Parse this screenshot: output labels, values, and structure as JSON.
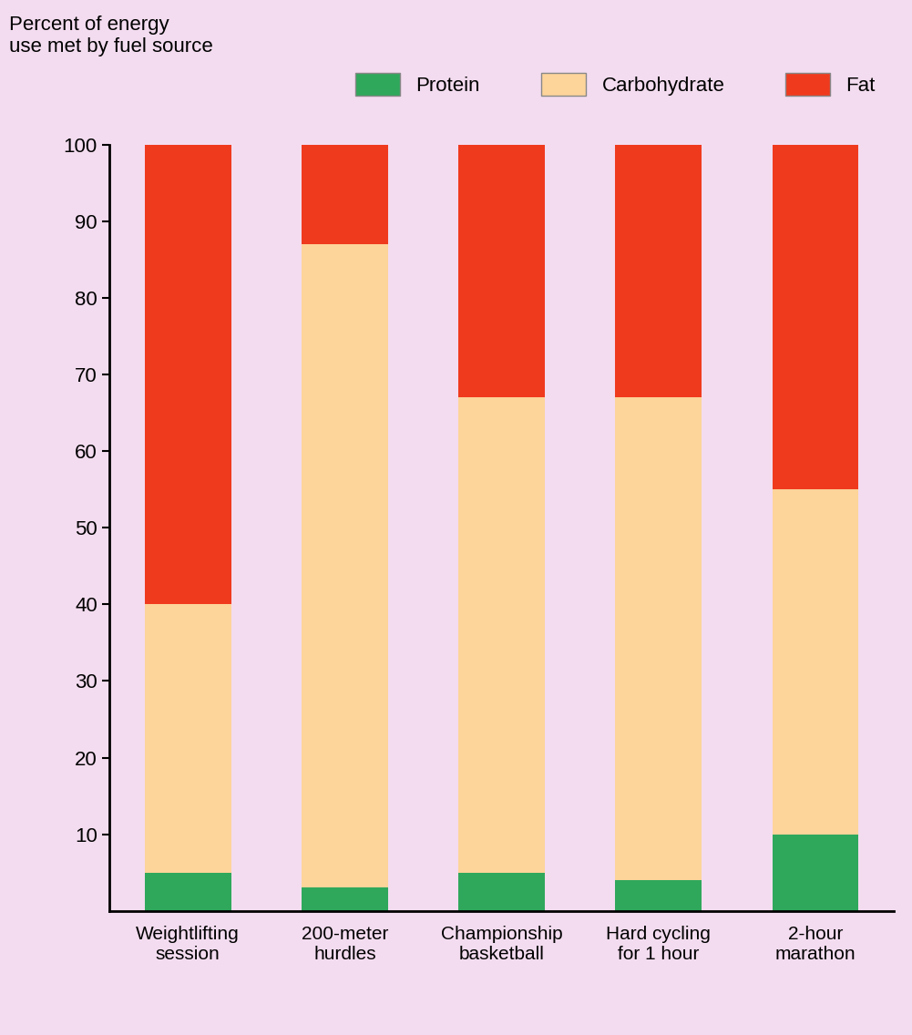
{
  "chart_data": {
    "type": "bar",
    "stacked": true,
    "y_label": "Percent of energy\nuse met by fuel source",
    "categories": [
      "Weightlifting\nsession",
      "200-meter\nhurdles",
      "Championship\nbasketball",
      "Hard cycling\nfor 1 hour",
      "2-hour\nmarathon"
    ],
    "series": [
      {
        "name": "Protein",
        "color": "#2fa85c",
        "values": [
          5,
          3,
          5,
          4,
          10
        ]
      },
      {
        "name": "Carbohydrate",
        "color": "#fdd49a",
        "values": [
          35,
          84,
          62,
          63,
          45
        ]
      },
      {
        "name": "Fat",
        "color": "#f03a1e",
        "values": [
          60,
          13,
          33,
          33,
          45
        ]
      }
    ],
    "ylim": [
      0,
      100
    ],
    "yticks": [
      10,
      20,
      30,
      40,
      50,
      60,
      70,
      80,
      90,
      100
    ],
    "legend": "lower right",
    "grid": false
  }
}
